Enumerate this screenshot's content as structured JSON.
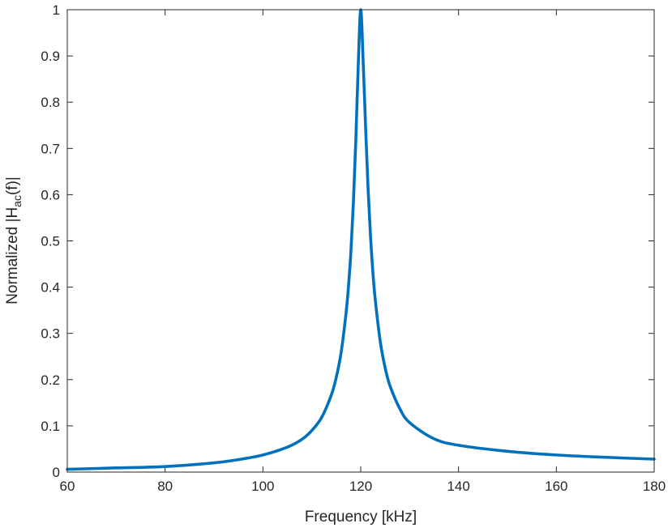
{
  "chart_data": {
    "type": "line",
    "title": "",
    "xlabel": "Frequency [kHz]",
    "ylabel_parts": {
      "prefix": "Normalized |H",
      "subscript": "ac",
      "suffix": "(f)|"
    },
    "xlim": [
      60,
      180
    ],
    "ylim": [
      0,
      1
    ],
    "xticks": [
      "60",
      "80",
      "100",
      "120",
      "140",
      "160",
      "180"
    ],
    "yticks": [
      "0",
      "0.1",
      "0.2",
      "0.3",
      "0.4",
      "0.5",
      "0.6",
      "0.7",
      "0.8",
      "0.9",
      "1"
    ],
    "grid": false,
    "line_color": "#0072BD",
    "series": [
      {
        "x": [
          60,
          70,
          80,
          90,
          95,
          100,
          105,
          108,
          110,
          112,
          114,
          115,
          116,
          117,
          117.5,
          118,
          118.5,
          119,
          119.5,
          120,
          120.5,
          121,
          121.5,
          122,
          122.5,
          123,
          124,
          125,
          126,
          128,
          130,
          135,
          140,
          150,
          160,
          170,
          180
        ],
        "y": [
          0.006,
          0.009,
          0.012,
          0.02,
          0.027,
          0.037,
          0.054,
          0.071,
          0.09,
          0.118,
          0.167,
          0.205,
          0.259,
          0.344,
          0.402,
          0.478,
          0.583,
          0.719,
          0.882,
          1.0,
          0.888,
          0.745,
          0.614,
          0.51,
          0.43,
          0.37,
          0.282,
          0.225,
          0.186,
          0.137,
          0.107,
          0.072,
          0.058,
          0.045,
          0.037,
          0.032,
          0.028
        ]
      }
    ]
  }
}
